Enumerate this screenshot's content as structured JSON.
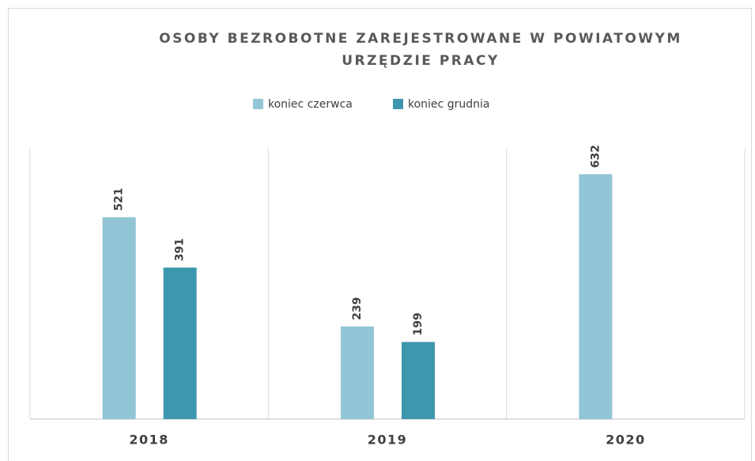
{
  "chart_data": {
    "type": "bar",
    "title": [
      "OSOBY BEZROBOTNE ZAREJESTROWANE W POWIATOWYM",
      "URZĘDZIE PRACY"
    ],
    "categories": [
      "2018",
      "2019",
      "2020"
    ],
    "series": [
      {
        "name": "koniec czerwca",
        "color": "#92c5d5",
        "values": [
          521,
          239,
          632
        ]
      },
      {
        "name": "koniec grudnia",
        "color": "#3d97ad",
        "values": [
          391,
          199,
          null
        ]
      }
    ]
  }
}
